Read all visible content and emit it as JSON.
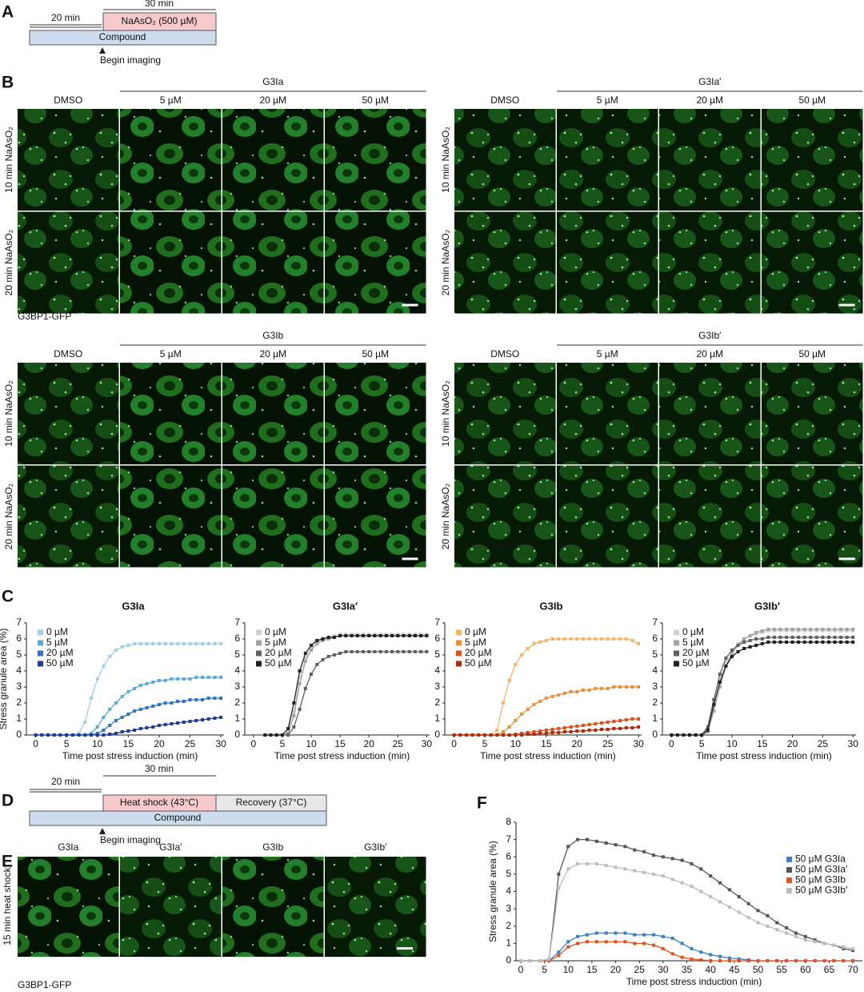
{
  "panel_a": {
    "letter": "A",
    "durations": [
      "20 min",
      "30 min"
    ],
    "treatment": "NaAsO₂ (500 µM)",
    "compound": "Compound",
    "marker": "Begin imaging"
  },
  "panel_b": {
    "letter": "B",
    "rows": [
      "10 min NaAsO₂",
      "20 min NaAsO₂"
    ],
    "stain": "G3BP1-GFP",
    "groups": [
      {
        "compound": "G3Ia",
        "columns": [
          "DMSO",
          "5 µM",
          "20 µM",
          "50 µM"
        ]
      },
      {
        "compound": "G3Ia′",
        "columns": [
          "DMSO",
          "5 µM",
          "20 µM",
          "50 µM"
        ]
      },
      {
        "compound": "G3Ib",
        "columns": [
          "DMSO",
          "5 µM",
          "20 µM",
          "50 µM"
        ]
      },
      {
        "compound": "G3Ib′",
        "columns": [
          "DMSO",
          "5 µM",
          "20 µM",
          "50 µM"
        ]
      }
    ]
  },
  "panel_c": {
    "letter": "C"
  },
  "panel_d": {
    "letter": "D",
    "durations": [
      "20 min",
      "30 min"
    ],
    "treatment": "Heat shock (43°C)",
    "recovery": "Recovery (37°C)",
    "compound": "Compound",
    "marker": "Begin imaging"
  },
  "panel_e": {
    "letter": "E",
    "row": "15 min heat shock",
    "columns": [
      "G3Ia",
      "G3Ia′",
      "G3Ib",
      "G3Ib′"
    ],
    "stain": "G3BP1-GFP"
  },
  "panel_f": {
    "letter": "F"
  },
  "chart_data": [
    {
      "type": "line",
      "title": "G3Ia",
      "ylabel": "Stress granule area (%)",
      "xlabel": "Time post stress induction (min)",
      "legend": "upper left",
      "xlim": [
        -1.5,
        30.5
      ],
      "xticks": [
        0,
        5,
        10,
        15,
        20,
        25,
        30
      ],
      "ylim": [
        0,
        7
      ],
      "yticks": [
        0,
        1,
        2,
        3,
        4,
        5,
        6,
        7
      ],
      "x": [
        0,
        1,
        2,
        3,
        4,
        5,
        6,
        7,
        8,
        9,
        10,
        11,
        12,
        13,
        14,
        15,
        16,
        17,
        18,
        19,
        20,
        21,
        22,
        23,
        24,
        25,
        26,
        27,
        28,
        29,
        30
      ],
      "series": [
        {
          "name": "0 µM",
          "color": "#9fd0ea",
          "values": [
            0,
            0,
            0,
            0,
            0,
            0,
            0,
            0.1,
            0.8,
            2.3,
            3.5,
            4.3,
            4.9,
            5.3,
            5.5,
            5.6,
            5.7,
            5.7,
            5.7,
            5.7,
            5.7,
            5.7,
            5.7,
            5.7,
            5.7,
            5.7,
            5.7,
            5.7,
            5.7,
            5.7,
            5.7
          ]
        },
        {
          "name": "5 µM",
          "color": "#5aaad8",
          "values": [
            0,
            0,
            0,
            0,
            0,
            0,
            0,
            0,
            0,
            0.1,
            0.5,
            1.1,
            1.6,
            2.0,
            2.4,
            2.7,
            2.9,
            3.1,
            3.2,
            3.3,
            3.4,
            3.4,
            3.5,
            3.5,
            3.5,
            3.5,
            3.6,
            3.6,
            3.6,
            3.6,
            3.6
          ]
        },
        {
          "name": "20 µM",
          "color": "#2e76c0",
          "values": [
            0,
            0,
            0,
            0,
            0,
            0,
            0,
            0,
            0,
            0,
            0.1,
            0.3,
            0.6,
            0.9,
            1.1,
            1.3,
            1.5,
            1.6,
            1.7,
            1.8,
            1.9,
            2.0,
            2.0,
            2.1,
            2.1,
            2.2,
            2.2,
            2.2,
            2.3,
            2.3,
            2.3
          ]
        },
        {
          "name": "50 µM",
          "color": "#1f3c96",
          "values": [
            0,
            0,
            0,
            0,
            0,
            0,
            0,
            0,
            0,
            0,
            0,
            0,
            0.05,
            0.1,
            0.2,
            0.25,
            0.3,
            0.4,
            0.45,
            0.5,
            0.6,
            0.65,
            0.7,
            0.75,
            0.8,
            0.85,
            0.9,
            0.95,
            1.0,
            1.05,
            1.1
          ]
        }
      ]
    },
    {
      "type": "line",
      "title": "G3Ia′",
      "xlabel": "Time post stress induction (min)",
      "legend": "upper left",
      "xlim": [
        -1.5,
        30.5
      ],
      "xticks": [
        0,
        5,
        10,
        15,
        20,
        25,
        30
      ],
      "ylim": [
        0,
        7
      ],
      "yticks": [
        0,
        1,
        2,
        3,
        4,
        5,
        6,
        7
      ],
      "x": [
        2,
        3,
        4,
        5,
        6,
        7,
        8,
        9,
        10,
        11,
        12,
        13,
        14,
        15,
        16,
        17,
        18,
        19,
        20,
        21,
        22,
        23,
        24,
        25,
        26,
        27,
        28,
        29,
        30
      ],
      "series": [
        {
          "name": "0 µM",
          "color": "#d2d2d2",
          "values": [
            0,
            0,
            0,
            0,
            0.2,
            1.5,
            3.6,
            4.8,
            5.4,
            5.8,
            6.0,
            6.1,
            6.2,
            6.3,
            6.3,
            6.3,
            6.3,
            6.3,
            6.3,
            6.3,
            6.3,
            6.3,
            6.3,
            6.3,
            6.3,
            6.3,
            6.3,
            6.3,
            6.3
          ]
        },
        {
          "name": "5 µM",
          "color": "#a3a3a3",
          "values": [
            0,
            0,
            0,
            0,
            0.1,
            1.2,
            3.2,
            4.6,
            5.3,
            5.7,
            5.9,
            6.0,
            6.1,
            6.2,
            6.2,
            6.2,
            6.2,
            6.2,
            6.2,
            6.2,
            6.2,
            6.2,
            6.2,
            6.2,
            6.2,
            6.2,
            6.2,
            6.2,
            6.2
          ]
        },
        {
          "name": "20 µM",
          "color": "#606060",
          "values": [
            0,
            0,
            0,
            0,
            0,
            0.5,
            1.6,
            2.9,
            3.8,
            4.4,
            4.7,
            4.9,
            5.0,
            5.1,
            5.2,
            5.2,
            5.2,
            5.2,
            5.2,
            5.2,
            5.2,
            5.2,
            5.2,
            5.2,
            5.2,
            5.2,
            5.2,
            5.2,
            5.2
          ]
        },
        {
          "name": "50 µM",
          "color": "#222222",
          "values": [
            0,
            0,
            0,
            0,
            0.4,
            2.0,
            4.0,
            5.1,
            5.6,
            5.9,
            6.0,
            6.1,
            6.1,
            6.2,
            6.2,
            6.2,
            6.2,
            6.2,
            6.2,
            6.2,
            6.2,
            6.2,
            6.2,
            6.2,
            6.2,
            6.2,
            6.2,
            6.2,
            6.2
          ]
        }
      ]
    },
    {
      "type": "line",
      "title": "G3Ib",
      "xlabel": "Time post stress induction (min)",
      "legend": "upper left",
      "xlim": [
        -1.5,
        30.5
      ],
      "xticks": [
        0,
        5,
        10,
        15,
        20,
        25,
        30
      ],
      "ylim": [
        0,
        7
      ],
      "yticks": [
        0,
        1,
        2,
        3,
        4,
        5,
        6,
        7
      ],
      "x": [
        0,
        1,
        2,
        3,
        4,
        5,
        6,
        7,
        8,
        9,
        10,
        11,
        12,
        13,
        14,
        15,
        16,
        17,
        18,
        19,
        20,
        21,
        22,
        23,
        24,
        25,
        26,
        27,
        28,
        29,
        30
      ],
      "series": [
        {
          "name": "0 µM",
          "color": "#f5b36a",
          "values": [
            0,
            0,
            0,
            0,
            0,
            0,
            0,
            0.3,
            2.0,
            3.4,
            4.4,
            5.0,
            5.4,
            5.7,
            5.8,
            5.9,
            6.0,
            6.0,
            6.0,
            6.0,
            6.0,
            6.0,
            6.0,
            6.0,
            6.0,
            6.0,
            6.0,
            6.0,
            6.0,
            5.9,
            5.7
          ]
        },
        {
          "name": "5 µM",
          "color": "#e8913c",
          "values": [
            0,
            0,
            0,
            0,
            0,
            0,
            0,
            0,
            0.2,
            0.5,
            0.9,
            1.3,
            1.6,
            1.9,
            2.1,
            2.3,
            2.4,
            2.5,
            2.6,
            2.7,
            2.7,
            2.8,
            2.8,
            2.9,
            2.9,
            2.9,
            3.0,
            3.0,
            3.0,
            3.0,
            3.0
          ]
        },
        {
          "name": "20 µM",
          "color": "#d9531e",
          "values": [
            0,
            0,
            0,
            0,
            0,
            0,
            0,
            0,
            0,
            0,
            0.05,
            0.1,
            0.15,
            0.2,
            0.25,
            0.3,
            0.35,
            0.4,
            0.45,
            0.5,
            0.55,
            0.6,
            0.65,
            0.7,
            0.75,
            0.8,
            0.85,
            0.9,
            0.95,
            1.0,
            1.0
          ]
        },
        {
          "name": "50 µM",
          "color": "#ad2e0c",
          "values": [
            0,
            0,
            0,
            0,
            0,
            0,
            0,
            0,
            0,
            0,
            0,
            0,
            0.05,
            0.05,
            0.1,
            0.1,
            0.15,
            0.15,
            0.2,
            0.2,
            0.25,
            0.25,
            0.3,
            0.3,
            0.35,
            0.35,
            0.4,
            0.4,
            0.45,
            0.45,
            0.5
          ]
        }
      ]
    },
    {
      "type": "line",
      "title": "G3Ib′",
      "xlabel": "Time post stress induction (min)",
      "legend": "upper left",
      "xlim": [
        -1.5,
        30.5
      ],
      "xticks": [
        0,
        5,
        10,
        15,
        20,
        25,
        30
      ],
      "ylim": [
        0,
        7
      ],
      "yticks": [
        0,
        1,
        2,
        3,
        4,
        5,
        6,
        7
      ],
      "x": [
        0,
        1,
        2,
        3,
        4,
        5,
        6,
        7,
        8,
        9,
        10,
        11,
        12,
        13,
        14,
        15,
        16,
        17,
        18,
        19,
        20,
        21,
        22,
        23,
        24,
        25,
        26,
        27,
        28,
        29,
        30
      ],
      "series": [
        {
          "name": "0 µM",
          "color": "#d2d2d2",
          "values": [
            0,
            0,
            0,
            0,
            0,
            0,
            0.3,
            1.8,
            3.4,
            4.5,
            5.2,
            5.7,
            6.0,
            6.2,
            6.3,
            6.4,
            6.5,
            6.5,
            6.5,
            6.5,
            6.5,
            6.5,
            6.5,
            6.5,
            6.5,
            6.5,
            6.5,
            6.5,
            6.5,
            6.5,
            6.5
          ]
        },
        {
          "name": "5 µM",
          "color": "#a3a3a3",
          "values": [
            0,
            0,
            0,
            0,
            0,
            0,
            0.2,
            1.5,
            3.0,
            4.3,
            5.1,
            5.6,
            6.0,
            6.2,
            6.4,
            6.5,
            6.6,
            6.6,
            6.6,
            6.6,
            6.6,
            6.6,
            6.6,
            6.6,
            6.6,
            6.6,
            6.6,
            6.6,
            6.6,
            6.6,
            6.6
          ]
        },
        {
          "name": "20 µM",
          "color": "#606060",
          "values": [
            0,
            0,
            0,
            0,
            0,
            0,
            0.5,
            2.2,
            3.8,
            4.8,
            5.3,
            5.6,
            5.8,
            5.9,
            6.0,
            6.0,
            6.1,
            6.1,
            6.1,
            6.1,
            6.1,
            6.1,
            6.1,
            6.1,
            6.1,
            6.1,
            6.1,
            6.1,
            6.1,
            6.1,
            6.1
          ]
        },
        {
          "name": "50 µM",
          "color": "#222222",
          "values": [
            0,
            0,
            0,
            0,
            0,
            0,
            0.3,
            1.9,
            3.3,
            4.3,
            4.9,
            5.2,
            5.4,
            5.5,
            5.6,
            5.7,
            5.8,
            5.8,
            5.8,
            5.8,
            5.8,
            5.8,
            5.8,
            5.8,
            5.8,
            5.8,
            5.8,
            5.8,
            5.8,
            5.8,
            5.8
          ]
        }
      ]
    },
    {
      "type": "line",
      "ylabel": "Stress granule area (%)",
      "xlabel": "Time post stress induction (min)",
      "legend": "center right",
      "xlim": [
        -1,
        72
      ],
      "xticks": [
        0,
        5,
        10,
        15,
        20,
        25,
        30,
        35,
        40,
        45,
        50,
        55,
        60,
        65,
        70
      ],
      "ylim": [
        0,
        8
      ],
      "yticks": [
        0,
        1,
        2,
        3,
        4,
        5,
        6,
        7,
        8
      ],
      "x": [
        0,
        2,
        4,
        6,
        8,
        10,
        12,
        14,
        16,
        18,
        20,
        22,
        24,
        26,
        28,
        30,
        32,
        34,
        36,
        38,
        40,
        42,
        44,
        46,
        48,
        50,
        52,
        54,
        56,
        58,
        60,
        62,
        64,
        66,
        68,
        70
      ],
      "series": [
        {
          "name": "50 µM G3Ia",
          "color": "#3b80c6",
          "values": [
            0,
            0,
            0,
            0,
            0.5,
            1.1,
            1.4,
            1.5,
            1.6,
            1.6,
            1.6,
            1.6,
            1.5,
            1.5,
            1.5,
            1.4,
            1.3,
            1.0,
            0.7,
            0.5,
            0.35,
            0.25,
            0.15,
            0.1,
            0.05,
            0,
            0,
            0,
            0,
            0,
            0,
            0,
            0,
            0,
            0,
            0
          ]
        },
        {
          "name": "50 µM G3Ia′",
          "color": "#555555",
          "values": [
            0,
            0,
            0,
            0.1,
            5.0,
            6.6,
            7.0,
            7.0,
            6.9,
            6.8,
            6.7,
            6.6,
            6.4,
            6.3,
            6.1,
            6.0,
            5.9,
            5.8,
            5.6,
            5.3,
            4.9,
            4.5,
            4.1,
            3.7,
            3.3,
            2.9,
            2.6,
            2.2,
            1.9,
            1.6,
            1.4,
            1.2,
            1.0,
            0.9,
            0.7,
            0.6
          ]
        },
        {
          "name": "50 µM G3Ib",
          "color": "#e0521e",
          "values": [
            0,
            0,
            0,
            0,
            0.3,
            0.8,
            1.0,
            1.1,
            1.1,
            1.1,
            1.1,
            1.1,
            1.0,
            1.0,
            0.9,
            0.7,
            0.4,
            0.2,
            0.1,
            0.05,
            0,
            0,
            0,
            0,
            0,
            0,
            0,
            0,
            0,
            0,
            0,
            0,
            0,
            0,
            0,
            0
          ]
        },
        {
          "name": "50 µM G3Ib′",
          "color": "#bdbdbd",
          "values": [
            0,
            0,
            0,
            0.1,
            4.2,
            5.3,
            5.6,
            5.6,
            5.6,
            5.5,
            5.4,
            5.3,
            5.2,
            5.1,
            5.0,
            4.9,
            4.7,
            4.5,
            4.3,
            4.0,
            3.7,
            3.4,
            3.1,
            2.8,
            2.5,
            2.2,
            2.0,
            1.8,
            1.6,
            1.4,
            1.2,
            1.1,
            1.0,
            0.9,
            0.8,
            0.7
          ]
        }
      ]
    }
  ]
}
